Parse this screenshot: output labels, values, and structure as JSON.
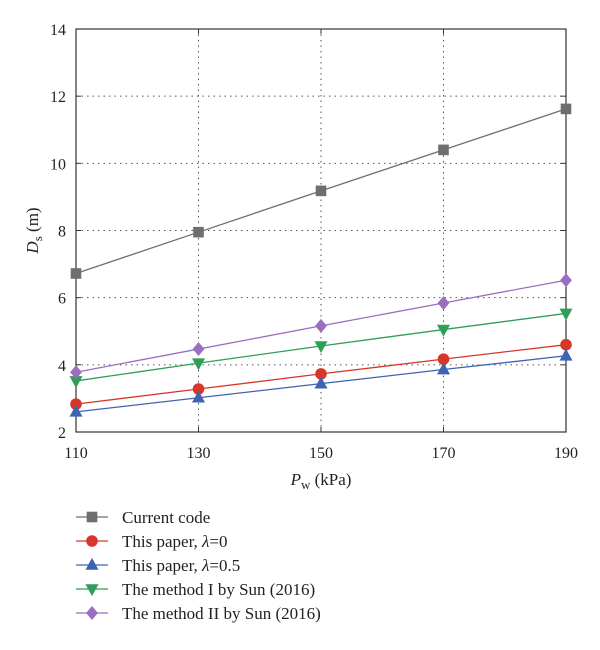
{
  "chart_data": {
    "type": "line",
    "x": [
      110,
      130,
      150,
      170,
      190
    ],
    "xlim": [
      110,
      190
    ],
    "ylim": [
      2,
      14
    ],
    "xticks": [
      "110",
      "130",
      "150",
      "170",
      "190"
    ],
    "yticks": [
      "2",
      "4",
      "6",
      "8",
      "10",
      "12",
      "14"
    ],
    "xlabel": {
      "main": "P",
      "sub": "w",
      "unit": " (kPa)"
    },
    "ylabel": {
      "main": "D",
      "sub": "s",
      "unit": " (m)"
    },
    "grid": true,
    "legend_position": "below",
    "series": [
      {
        "name": "Current code",
        "legend": {
          "pre": "Current code",
          "sym": "",
          "post": ""
        },
        "marker": "square",
        "color": "#6e6e6e",
        "values": [
          6.72,
          7.95,
          9.18,
          10.4,
          11.62
        ]
      },
      {
        "name": "This paper, λ=0",
        "legend": {
          "pre": "This paper, ",
          "sym": "λ",
          "post": "=0"
        },
        "marker": "circle",
        "color": "#d7372a",
        "values": [
          2.83,
          3.28,
          3.73,
          4.17,
          4.6
        ]
      },
      {
        "name": "This paper, λ=0.5",
        "legend": {
          "pre": "This paper, ",
          "sym": "λ",
          "post": "=0.5"
        },
        "marker": "triangle-up",
        "color": "#3f63b3",
        "values": [
          2.6,
          3.02,
          3.44,
          3.86,
          4.27
        ]
      },
      {
        "name": "The method I by Sun (2016)",
        "legend": {
          "pre": "The method I by Sun (2016)",
          "sym": "",
          "post": ""
        },
        "marker": "triangle-down",
        "color": "#2f9e58",
        "values": [
          3.52,
          4.05,
          4.56,
          5.05,
          5.53
        ]
      },
      {
        "name": "The method II by Sun (2016)",
        "legend": {
          "pre": "The method II by Sun (2016)",
          "sym": "",
          "post": ""
        },
        "marker": "diamond",
        "color": "#9a6fc0",
        "values": [
          3.78,
          4.47,
          5.16,
          5.84,
          6.52
        ]
      }
    ]
  }
}
